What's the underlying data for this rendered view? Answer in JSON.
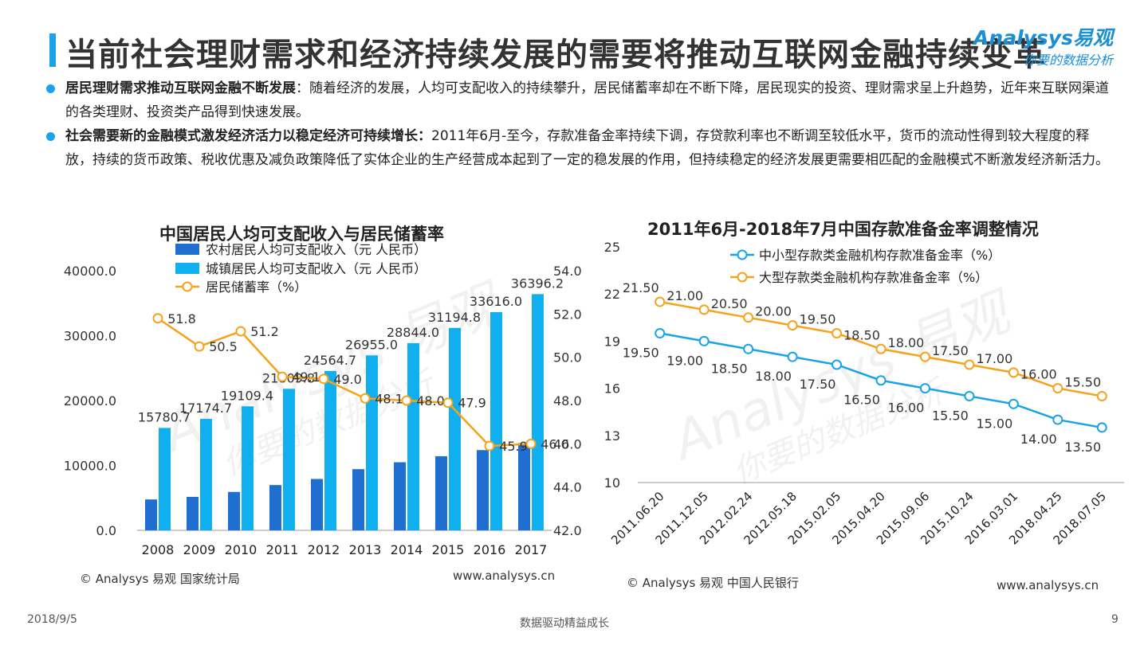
{
  "header": {
    "title": "当前社会理财需求和经济持续发展的需要将推动互联网金融持续变革",
    "logo_brand": "Analysys易观",
    "logo_slogan": "你要的数据分析"
  },
  "bullets": [
    {
      "bold": "居民理财需求推动互联网金融不断发展",
      "text": "：随着经济的发展，人均可支配收入的持续攀升，居民储蓄率却在不断下降，居民现实的投资、理财需求呈上升趋势，近年来互联网渠道的各类理财、投资类产品得到快速发展。"
    },
    {
      "bold": "社会需要新的金融模式激发经济活力以稳定经济可持续增长：",
      "text": "2011年6月-至今，存款准备金率持续下调，存贷款利率也不断调至较低水平，货币的流动性得到较大程度的释放，持续的货币政策、税收优惠及减负政策降低了实体企业的生产经营成本起到了一定的稳发展的作用，但持续稳定的经济发展更需要相匹配的金融模式不断激发经济新活力。"
    }
  ],
  "watermark": {
    "brand": "Analysys 易观",
    "slogan": "你要的数据分析"
  },
  "chart_data": [
    {
      "type": "bar",
      "title": "中国居民人均可支配收入与居民储蓄率",
      "categories": [
        "2008",
        "2009",
        "2010",
        "2011",
        "2012",
        "2013",
        "2014",
        "2015",
        "2016",
        "2017"
      ],
      "series": [
        {
          "name": "农村居民人均可支配收入（元 人民币）",
          "color": "#1f6fd1",
          "axis": "left",
          "values": [
            4761,
            5153,
            5919,
            6977,
            7917,
            9430,
            10489,
            11422,
            12363,
            13432
          ]
        },
        {
          "name": "城镇居民人均可支配收入（元 人民币）",
          "color": "#10b0f0",
          "axis": "left",
          "values": [
            15780.7,
            17174.7,
            19109.4,
            21809.8,
            24564.7,
            26955.0,
            28844.0,
            31194.8,
            33616.0,
            36396.2
          ],
          "labels": [
            "15780.7",
            "17174.7",
            "19109.4",
            "21809.8",
            "24564.7",
            "26955.0",
            "28844.0",
            "31194.8",
            "33616.0",
            "36396.2"
          ]
        },
        {
          "name": "居民储蓄率（%）",
          "color": "#f7a21b",
          "axis": "right",
          "kind": "line",
          "values": [
            51.8,
            50.5,
            51.2,
            49.1,
            49.0,
            48.1,
            48.0,
            47.9,
            45.9,
            46.0
          ],
          "labels": [
            "51.8",
            "50.5",
            "51.2",
            "49.1",
            "49.0",
            "48.1",
            "48.0",
            "47.9",
            "45.9",
            "46.0"
          ]
        }
      ],
      "y_left": {
        "min": 0,
        "max": 40000,
        "ticks": [
          "0.0",
          "10000.0",
          "20000.0",
          "30000.0",
          "40000.0"
        ]
      },
      "y_right": {
        "min": 42,
        "max": 54,
        "ticks": [
          "42.0",
          "44.0",
          "46.0",
          "48.0",
          "50.0",
          "52.0",
          "54.0"
        ]
      },
      "legend": "top-left",
      "source": "© Analysys 易观 国家统计局",
      "site": "www.analysys.cn"
    },
    {
      "type": "line",
      "title": "2011年6月-2018年7月中国存款准备金率调整情况",
      "categories": [
        "2011.06.20",
        "2011.12.05",
        "2012.02.24",
        "2012.05.18",
        "2015.02.05",
        "2015.04.20",
        "2015.09.06",
        "2015.10.24",
        "2016.03.01",
        "2018.04.25",
        "2018.07.05"
      ],
      "series": [
        {
          "name": "中小型存款类金融机构存款准备金率（%）",
          "color": "#1aa3e8",
          "values": [
            19.5,
            19.0,
            18.5,
            18.0,
            17.5,
            16.5,
            16.0,
            15.5,
            15.0,
            14.0,
            13.5
          ],
          "labels": [
            "19.50",
            "19.00",
            "18.50",
            "18.00",
            "17.50",
            "16.50",
            "16.00",
            "15.50",
            "15.00",
            "14.00",
            "13.50"
          ]
        },
        {
          "name": "大型存款类金融机构存款准备金率（%）",
          "color": "#f7a21b",
          "values": [
            21.5,
            21.0,
            20.5,
            20.0,
            19.5,
            18.5,
            18.0,
            17.5,
            17.0,
            16.0,
            15.5
          ],
          "labels": [
            "21.50",
            "21.00",
            "20.50",
            "20.00",
            "19.50",
            "18.50",
            "18.00",
            "17.50",
            "17.00",
            "16.00",
            "15.50"
          ]
        }
      ],
      "y": {
        "min": 10,
        "max": 25,
        "ticks": [
          "10",
          "13",
          "16",
          "19",
          "22",
          "25"
        ]
      },
      "legend": "top",
      "source": "© Analysys 易观 中国人民银行",
      "site": "www.analysys.cn"
    }
  ],
  "footer": {
    "date": "2018/9/5",
    "slogan": "数据驱动精益成长",
    "page": "9"
  }
}
